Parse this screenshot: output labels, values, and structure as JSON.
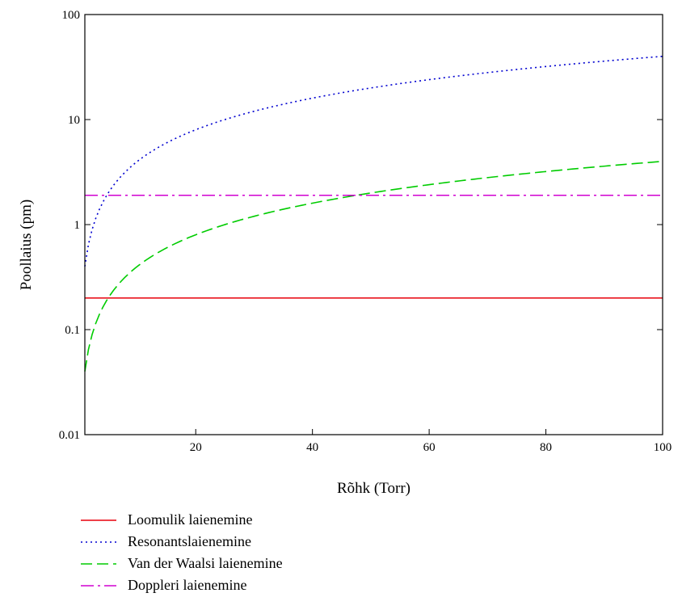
{
  "chart_data": {
    "type": "line",
    "xlabel": "Rõhk (Torr)",
    "ylabel": "Poollaius (pm)",
    "xlim": [
      1,
      100
    ],
    "ylim": [
      0.01,
      100
    ],
    "yscale": "log",
    "grid": false,
    "legend_position": "bottom",
    "x_ticks": [
      20,
      40,
      60,
      80,
      100
    ],
    "y_ticks": [
      {
        "value": 0.01,
        "label": "0.01"
      },
      {
        "value": 0.1,
        "label": "0.1"
      },
      {
        "value": 1,
        "label": "1"
      },
      {
        "value": 10,
        "label": "10"
      },
      {
        "value": 100,
        "label": "100"
      }
    ],
    "series": [
      {
        "name": "Loomulik laienemine",
        "color": "#e8000b",
        "dash": "solid",
        "x": [
          1,
          100
        ],
        "y": [
          0.2,
          0.2
        ]
      },
      {
        "name": "Resonantslaienemine",
        "color": "#0000d0",
        "dash": "dotted",
        "x": [
          1,
          2,
          3,
          5,
          10,
          15,
          20,
          30,
          40,
          50,
          60,
          70,
          80,
          90,
          100
        ],
        "y": [
          0.4,
          0.8,
          1.2,
          2.0,
          4.0,
          6.0,
          8.0,
          12.0,
          16.0,
          20.0,
          24.0,
          28.0,
          32.0,
          36.0,
          40.0
        ]
      },
      {
        "name": "Van der Waalsi laienemine",
        "color": "#00cc00",
        "dash": "dashed",
        "x": [
          1,
          2,
          3,
          5,
          10,
          15,
          20,
          30,
          40,
          50,
          60,
          70,
          80,
          90,
          100
        ],
        "y": [
          0.04,
          0.08,
          0.12,
          0.2,
          0.4,
          0.6,
          0.8,
          1.2,
          1.6,
          2.0,
          2.4,
          2.8,
          3.2,
          3.6,
          4.0
        ]
      },
      {
        "name": "Doppleri laienemine",
        "color": "#d000d0",
        "dash": "dashdot",
        "x": [
          1,
          100
        ],
        "y": [
          1.9,
          1.9
        ]
      }
    ]
  }
}
